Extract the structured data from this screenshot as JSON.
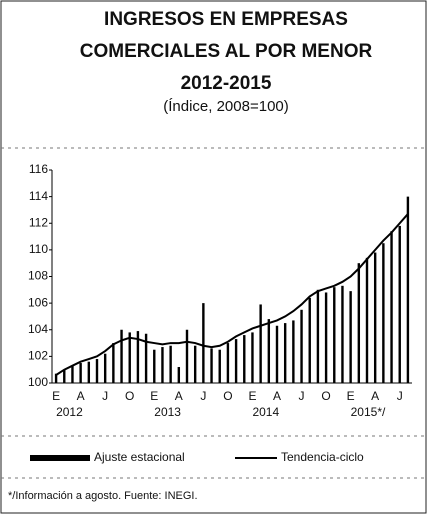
{
  "chart_data": {
    "type": "bar-line",
    "title": [
      "INGRESOS EN EMPRESAS",
      "COMERCIALES AL POR MENOR",
      "2012-2015"
    ],
    "subtitle": "(Índice, 2008=100)",
    "categories": [
      "E",
      null,
      null,
      "A",
      null,
      null,
      "J",
      null,
      null,
      "O",
      null,
      null,
      "E",
      null,
      null,
      "A",
      null,
      null,
      "J",
      null,
      null,
      "O",
      null,
      null,
      "E",
      null,
      null,
      "A",
      null,
      null,
      "J",
      null,
      null,
      "O",
      null,
      null,
      "E",
      null,
      null,
      "A",
      null,
      null,
      "J",
      null
    ],
    "years": [
      "2012",
      "2013",
      "2014",
      "2015*/"
    ],
    "series": [
      {
        "name": "Ajuste estacional",
        "color": "#000000",
        "kind": "bar",
        "values": [
          100.7,
          101.0,
          101.3,
          101.5,
          101.6,
          101.8,
          102.2,
          103.0,
          104.0,
          103.8,
          103.9,
          103.7,
          102.5,
          102.7,
          102.8,
          101.2,
          104.0,
          102.8,
          106.0,
          102.6,
          102.5,
          103.0,
          103.3,
          103.6,
          103.8,
          105.9,
          104.8,
          104.3,
          104.5,
          104.7,
          105.5,
          106.4,
          107.0,
          106.8,
          107.2,
          107.3,
          106.9,
          109.0,
          109.4,
          109.8,
          110.5,
          111.4,
          111.8,
          114.0
        ]
      },
      {
        "name": "Tendencia-ciclo",
        "color": "#000000",
        "kind": "line",
        "values": [
          100.6,
          101.0,
          101.3,
          101.6,
          101.8,
          102.0,
          102.4,
          102.9,
          103.2,
          103.4,
          103.3,
          103.1,
          103.0,
          102.9,
          103.0,
          103.0,
          103.1,
          103.0,
          102.8,
          102.7,
          102.8,
          103.1,
          103.5,
          103.8,
          104.1,
          104.3,
          104.5,
          104.7,
          105.0,
          105.4,
          105.9,
          106.5,
          106.9,
          107.1,
          107.3,
          107.6,
          108.0,
          108.6,
          109.3,
          110.0,
          110.7,
          111.3,
          112.0,
          112.7
        ]
      }
    ],
    "ylim": [
      100,
      116
    ],
    "yticks": [
      100,
      102,
      104,
      106,
      108,
      110,
      112,
      114,
      116
    ],
    "footnote": "*/Información a agosto.   Fuente: INEGI."
  }
}
